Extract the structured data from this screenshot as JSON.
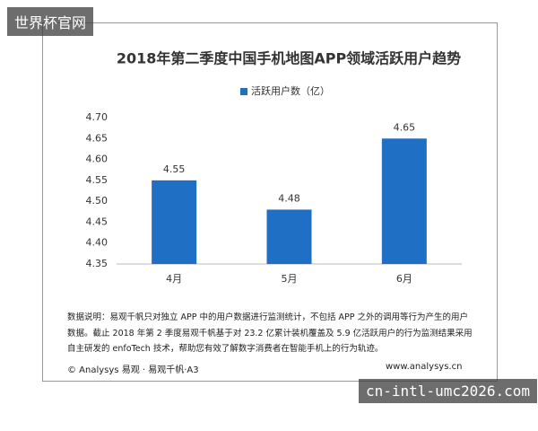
{
  "chart_data": {
    "type": "bar",
    "title": "2018年第二季度中国手机地图APP领域活跃用户趋势",
    "categories": [
      "4月",
      "5月",
      "6月"
    ],
    "series": [
      {
        "name": "活跃用户数（亿）",
        "color": "#1f6fc5",
        "values": [
          4.55,
          4.48,
          4.65
        ]
      }
    ],
    "ylim": [
      4.35,
      4.7
    ],
    "yticks": [
      {
        "value": 4.35,
        "label": "4.35"
      },
      {
        "value": 4.4,
        "label": "4.40"
      },
      {
        "value": 4.45,
        "label": "4.45"
      },
      {
        "value": 4.5,
        "label": "4.50"
      },
      {
        "value": 4.55,
        "label": "4.55"
      },
      {
        "value": 4.6,
        "label": "4.60"
      },
      {
        "value": 4.65,
        "label": "4.65"
      },
      {
        "value": 4.7,
        "label": "4.70"
      }
    ],
    "grid": false,
    "legend": "top"
  },
  "note": [
    "数据说明：易观千帆只对独立 APP 中的用户数据进行监测统计，不包括 APP 之外的调用等行为产生的用户",
    "数据。截止 2018 年第 2 季度易观千帆基于对 23.2 亿累计装机覆盖及 5.9 亿活跃用户的行为监测结果采用",
    "自主研发的 enfoTech 技术，帮助您有效了解数字消费者在智能手机上的行为轨迹。"
  ],
  "footer": {
    "left": "© Analysys 易观 · 易观千帆·A3",
    "right": "www.analysys.cn"
  },
  "watermarks": [
    "世界杯官网",
    "cn-intl-umc2026.com"
  ]
}
